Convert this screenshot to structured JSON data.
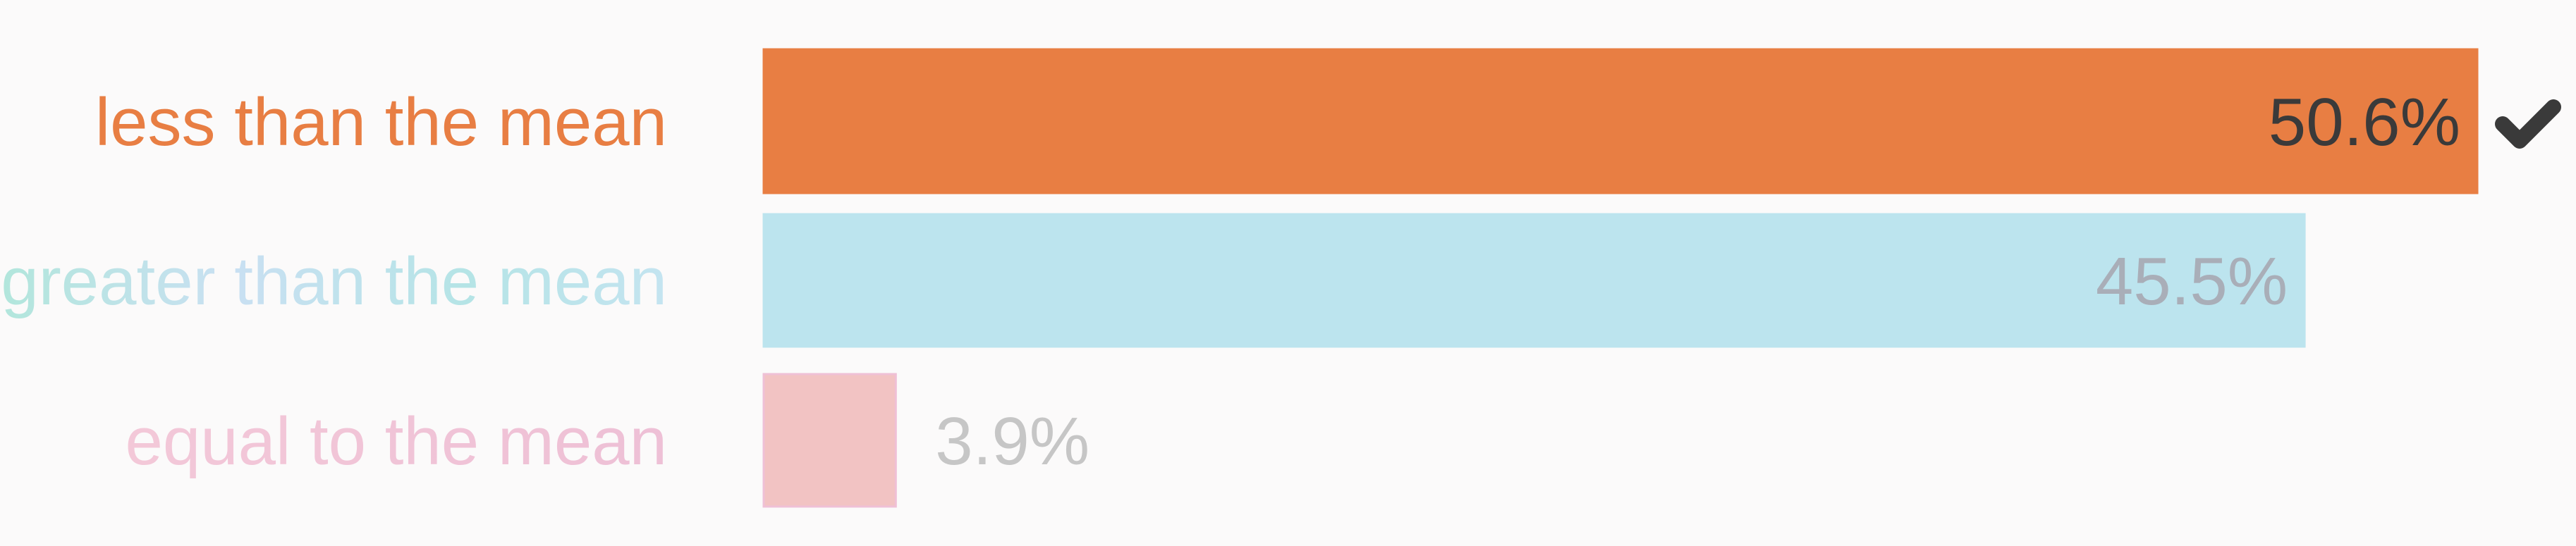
{
  "chart_data": {
    "type": "bar",
    "orientation": "horizontal",
    "categories": [
      "less than the mean",
      "greater than the mean",
      "equal to the mean"
    ],
    "values": [
      50.6,
      45.5,
      3.9
    ],
    "value_labels": [
      "50.6%",
      "45.5%",
      "3.9%"
    ],
    "unit": "%",
    "xlim": [
      0,
      50.6
    ],
    "grid": false,
    "legend": "none",
    "title": "",
    "xlabel": "",
    "ylabel": "",
    "selected_index": 0,
    "selected_icon": "checkmark-icon"
  },
  "colors": {
    "background": "#fbfafa",
    "bars": [
      "#e87e43",
      "#bce4ee",
      "#f2c3c3"
    ],
    "bar_borders": [
      "#e87e43",
      "#bce4ee",
      "#efc0d6"
    ],
    "category_labels": [
      "#e87e43",
      "#c2e4ec",
      "#f1c3d4"
    ],
    "value_labels": [
      "#3a3a3a",
      "#a9aeb8",
      "#c6c6c6"
    ],
    "checkmark": "#3a3a3a"
  }
}
